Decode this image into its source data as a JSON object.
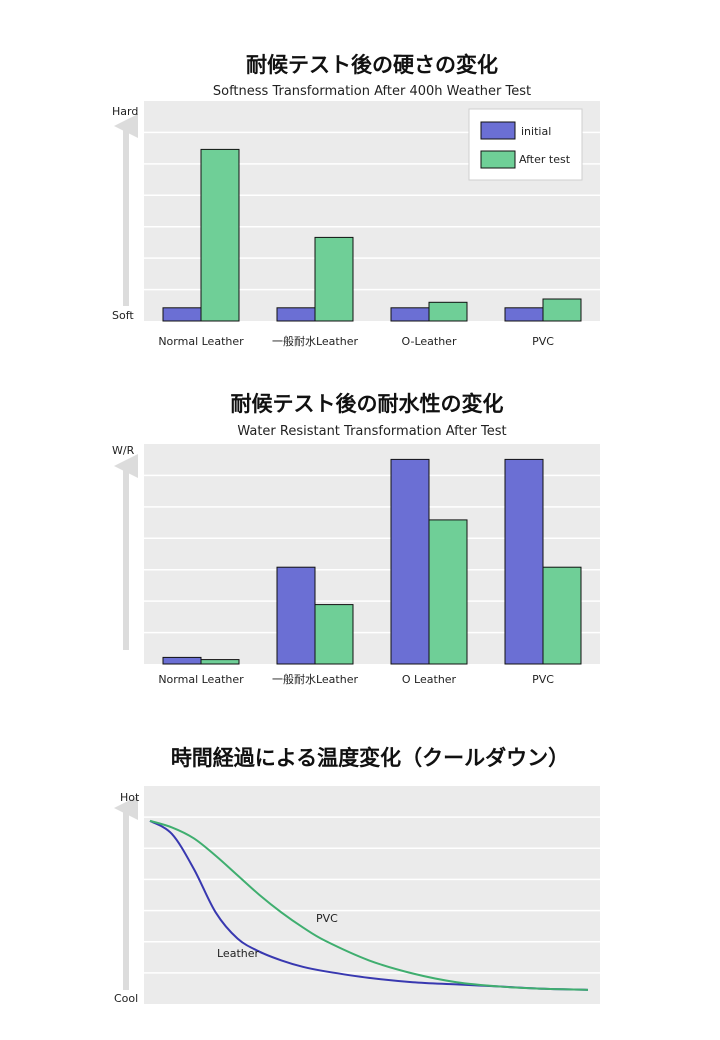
{
  "colors": {
    "initial": "#6b6fd4",
    "after_test": "#6fcf97",
    "leather_line": "#3838b0",
    "pvc_line": "#3fae6f",
    "plot_bg": "#ebebeb",
    "grid": "#ffffff",
    "arrow": "#dcdcdc"
  },
  "chart_data": [
    {
      "type": "bar",
      "title": "耐候テスト後の硬さの変化",
      "subtitle": "Softness Transformation After 400h Weather Test",
      "ylabel_top": "Hard",
      "ylabel_bottom": "Soft",
      "categories": [
        "Normal Leather",
        "一般耐水Leather",
        "O-Leather",
        "PVC"
      ],
      "series": [
        {
          "name": "initial",
          "values": [
            0.6,
            0.6,
            0.6,
            0.6
          ]
        },
        {
          "name": "After test",
          "values": [
            7.8,
            3.8,
            0.85,
            1.0
          ]
        }
      ],
      "ylim": [
        0,
        10
      ],
      "grid": true,
      "legend": "top-right"
    },
    {
      "type": "bar",
      "title": "耐候テスト後の耐水性の変化",
      "subtitle": "Water Resistant Transformation After Test",
      "ylabel_top": "W/R",
      "categories": [
        "Normal Leather",
        "一般耐水Leather",
        "O Leather",
        "PVC"
      ],
      "series": [
        {
          "values": [
            0.3,
            4.4,
            9.3,
            9.3
          ]
        },
        {
          "values": [
            0.2,
            2.7,
            6.55,
            4.4
          ]
        }
      ],
      "ylim": [
        0,
        10
      ],
      "grid": true
    },
    {
      "type": "line",
      "title": "時間経過による温度変化（クールダウン）",
      "ylabel_top": "Hot",
      "ylabel_bottom": "Cool",
      "x": [
        0,
        0.05,
        0.1,
        0.15,
        0.2,
        0.25,
        0.3,
        0.35,
        0.4,
        0.5,
        0.6,
        0.7,
        0.8,
        0.9,
        1.0
      ],
      "series": [
        {
          "name": "Leather",
          "values": [
            0.84,
            0.78,
            0.62,
            0.42,
            0.3,
            0.24,
            0.2,
            0.17,
            0.15,
            0.12,
            0.1,
            0.09,
            0.08,
            0.07,
            0.065
          ]
        },
        {
          "name": "PVC",
          "values": [
            0.84,
            0.81,
            0.76,
            0.68,
            0.59,
            0.5,
            0.42,
            0.35,
            0.29,
            0.2,
            0.14,
            0.1,
            0.08,
            0.07,
            0.065
          ]
        }
      ],
      "ylim": [
        0,
        1
      ],
      "grid": true
    }
  ]
}
